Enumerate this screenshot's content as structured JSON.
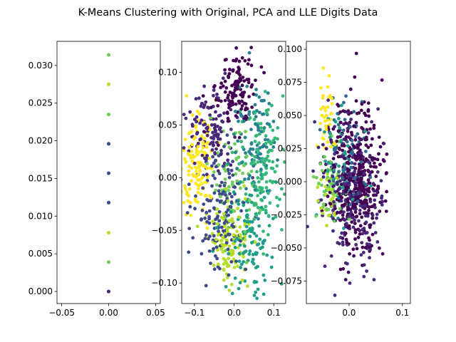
{
  "figure": {
    "title": "K-Means Clustering with Original, PCA and LLE Digits Data",
    "background": "#ffffff"
  },
  "palette": [
    "#440154",
    "#482878",
    "#3e4989",
    "#31688e",
    "#26828e",
    "#1f9e89",
    "#35b779",
    "#6ece58",
    "#b5de2b",
    "#fde725"
  ],
  "chart_data": [
    {
      "type": "scatter",
      "title": "",
      "xlabel": "",
      "ylabel": "",
      "xlim": [
        -0.055,
        0.055
      ],
      "ylim": [
        -0.0016,
        0.0332
      ],
      "xticks": [
        -0.05,
        0.0,
        0.05
      ],
      "xtick_labels": [
        "−0.05",
        "0.00",
        "0.05"
      ],
      "yticks": [
        0.0,
        0.005,
        0.01,
        0.015,
        0.02,
        0.025,
        0.03
      ],
      "ytick_labels": [
        "0.000",
        "0.005",
        "0.010",
        "0.015",
        "0.020",
        "0.025",
        "0.030"
      ],
      "grid": false,
      "points": [
        {
          "x": 0.0,
          "y": 0.0,
          "cluster": 1
        },
        {
          "x": 0.0,
          "y": 0.0039,
          "cluster": 7
        },
        {
          "x": 0.0,
          "y": 0.0078,
          "cluster": 8
        },
        {
          "x": 0.0,
          "y": 0.0118,
          "cluster": 2
        },
        {
          "x": 0.0,
          "y": 0.0157,
          "cluster": 2
        },
        {
          "x": 0.0,
          "y": 0.0196,
          "cluster": 2
        },
        {
          "x": 0.0,
          "y": 0.0235,
          "cluster": 7
        },
        {
          "x": 0.0,
          "y": 0.0275,
          "cluster": 8
        },
        {
          "x": 0.0,
          "y": 0.0314,
          "cluster": 7
        }
      ]
    },
    {
      "type": "scatter",
      "title": "",
      "xlabel": "",
      "ylabel": "",
      "xlim": [
        -0.132,
        0.13
      ],
      "ylim": [
        -0.1195,
        0.1295
      ],
      "xticks": [
        -0.1,
        0.0,
        0.1
      ],
      "xtick_labels": [
        "−0.1",
        "0.0",
        "0.1"
      ],
      "yticks": [
        -0.1,
        -0.05,
        0.0,
        0.05,
        0.1
      ],
      "ytick_labels": [
        "−0.10",
        "−0.05",
        "0.00",
        "0.05",
        "0.10"
      ],
      "grid": false,
      "clusters": [
        {
          "cluster": 0,
          "center": [
            0.005,
            0.085
          ],
          "spread": [
            0.025,
            0.018
          ],
          "count": 120
        },
        {
          "cluster": 1,
          "center": [
            -0.06,
            0.045
          ],
          "spread": [
            0.03,
            0.02
          ],
          "count": 120
        },
        {
          "cluster": 2,
          "center": [
            -0.04,
            -0.03
          ],
          "spread": [
            0.035,
            0.03
          ],
          "count": 150
        },
        {
          "cluster": 4,
          "center": [
            0.05,
            0.04
          ],
          "spread": [
            0.025,
            0.025
          ],
          "count": 90
        },
        {
          "cluster": 5,
          "center": [
            0.03,
            -0.06
          ],
          "spread": [
            0.035,
            0.03
          ],
          "count": 120
        },
        {
          "cluster": 6,
          "center": [
            0.07,
            0.01
          ],
          "spread": [
            0.03,
            0.03
          ],
          "count": 140
        },
        {
          "cluster": 7,
          "center": [
            0.0,
            0.0
          ],
          "spread": [
            0.03,
            0.03
          ],
          "count": 60
        },
        {
          "cluster": 8,
          "center": [
            -0.01,
            -0.065
          ],
          "spread": [
            0.025,
            0.02
          ],
          "count": 120
        },
        {
          "cluster": 9,
          "center": [
            -0.09,
            0.01
          ],
          "spread": [
            0.022,
            0.025
          ],
          "count": 130
        }
      ]
    },
    {
      "type": "scatter",
      "title": "",
      "xlabel": "",
      "ylabel": "",
      "xlim": [
        -0.08,
        0.115
      ],
      "ylim": [
        -0.092,
        0.106
      ],
      "xticks": [
        0.0,
        0.1
      ],
      "xtick_labels": [
        "0.0",
        "0.1"
      ],
      "yticks": [
        -0.075,
        -0.05,
        -0.025,
        0.0,
        0.025,
        0.05,
        0.075,
        0.1
      ],
      "ytick_labels": [
        "−0.075",
        "−0.050",
        "−0.025",
        "0.000",
        "0.025",
        "0.050",
        "0.075",
        "0.100"
      ],
      "grid": false,
      "clusters": [
        {
          "cluster": 0,
          "center": [
            0.015,
            0.0
          ],
          "spread": [
            0.025,
            0.03
          ],
          "count": 380
        },
        {
          "cluster": 1,
          "center": [
            0.0,
            -0.01
          ],
          "spread": [
            0.03,
            0.028
          ],
          "count": 220
        },
        {
          "cluster": 3,
          "center": [
            -0.01,
            0.02
          ],
          "spread": [
            0.02,
            0.02
          ],
          "count": 70
        },
        {
          "cluster": 5,
          "center": [
            -0.015,
            0.01
          ],
          "spread": [
            0.02,
            0.02
          ],
          "count": 60
        },
        {
          "cluster": 7,
          "center": [
            -0.03,
            -0.005
          ],
          "spread": [
            0.015,
            0.015
          ],
          "count": 50
        },
        {
          "cluster": 8,
          "center": [
            -0.04,
            -0.01
          ],
          "spread": [
            0.012,
            0.015
          ],
          "count": 30
        },
        {
          "cluster": 9,
          "center": [
            -0.04,
            0.045
          ],
          "spread": [
            0.01,
            0.02
          ],
          "count": 40
        }
      ]
    }
  ]
}
